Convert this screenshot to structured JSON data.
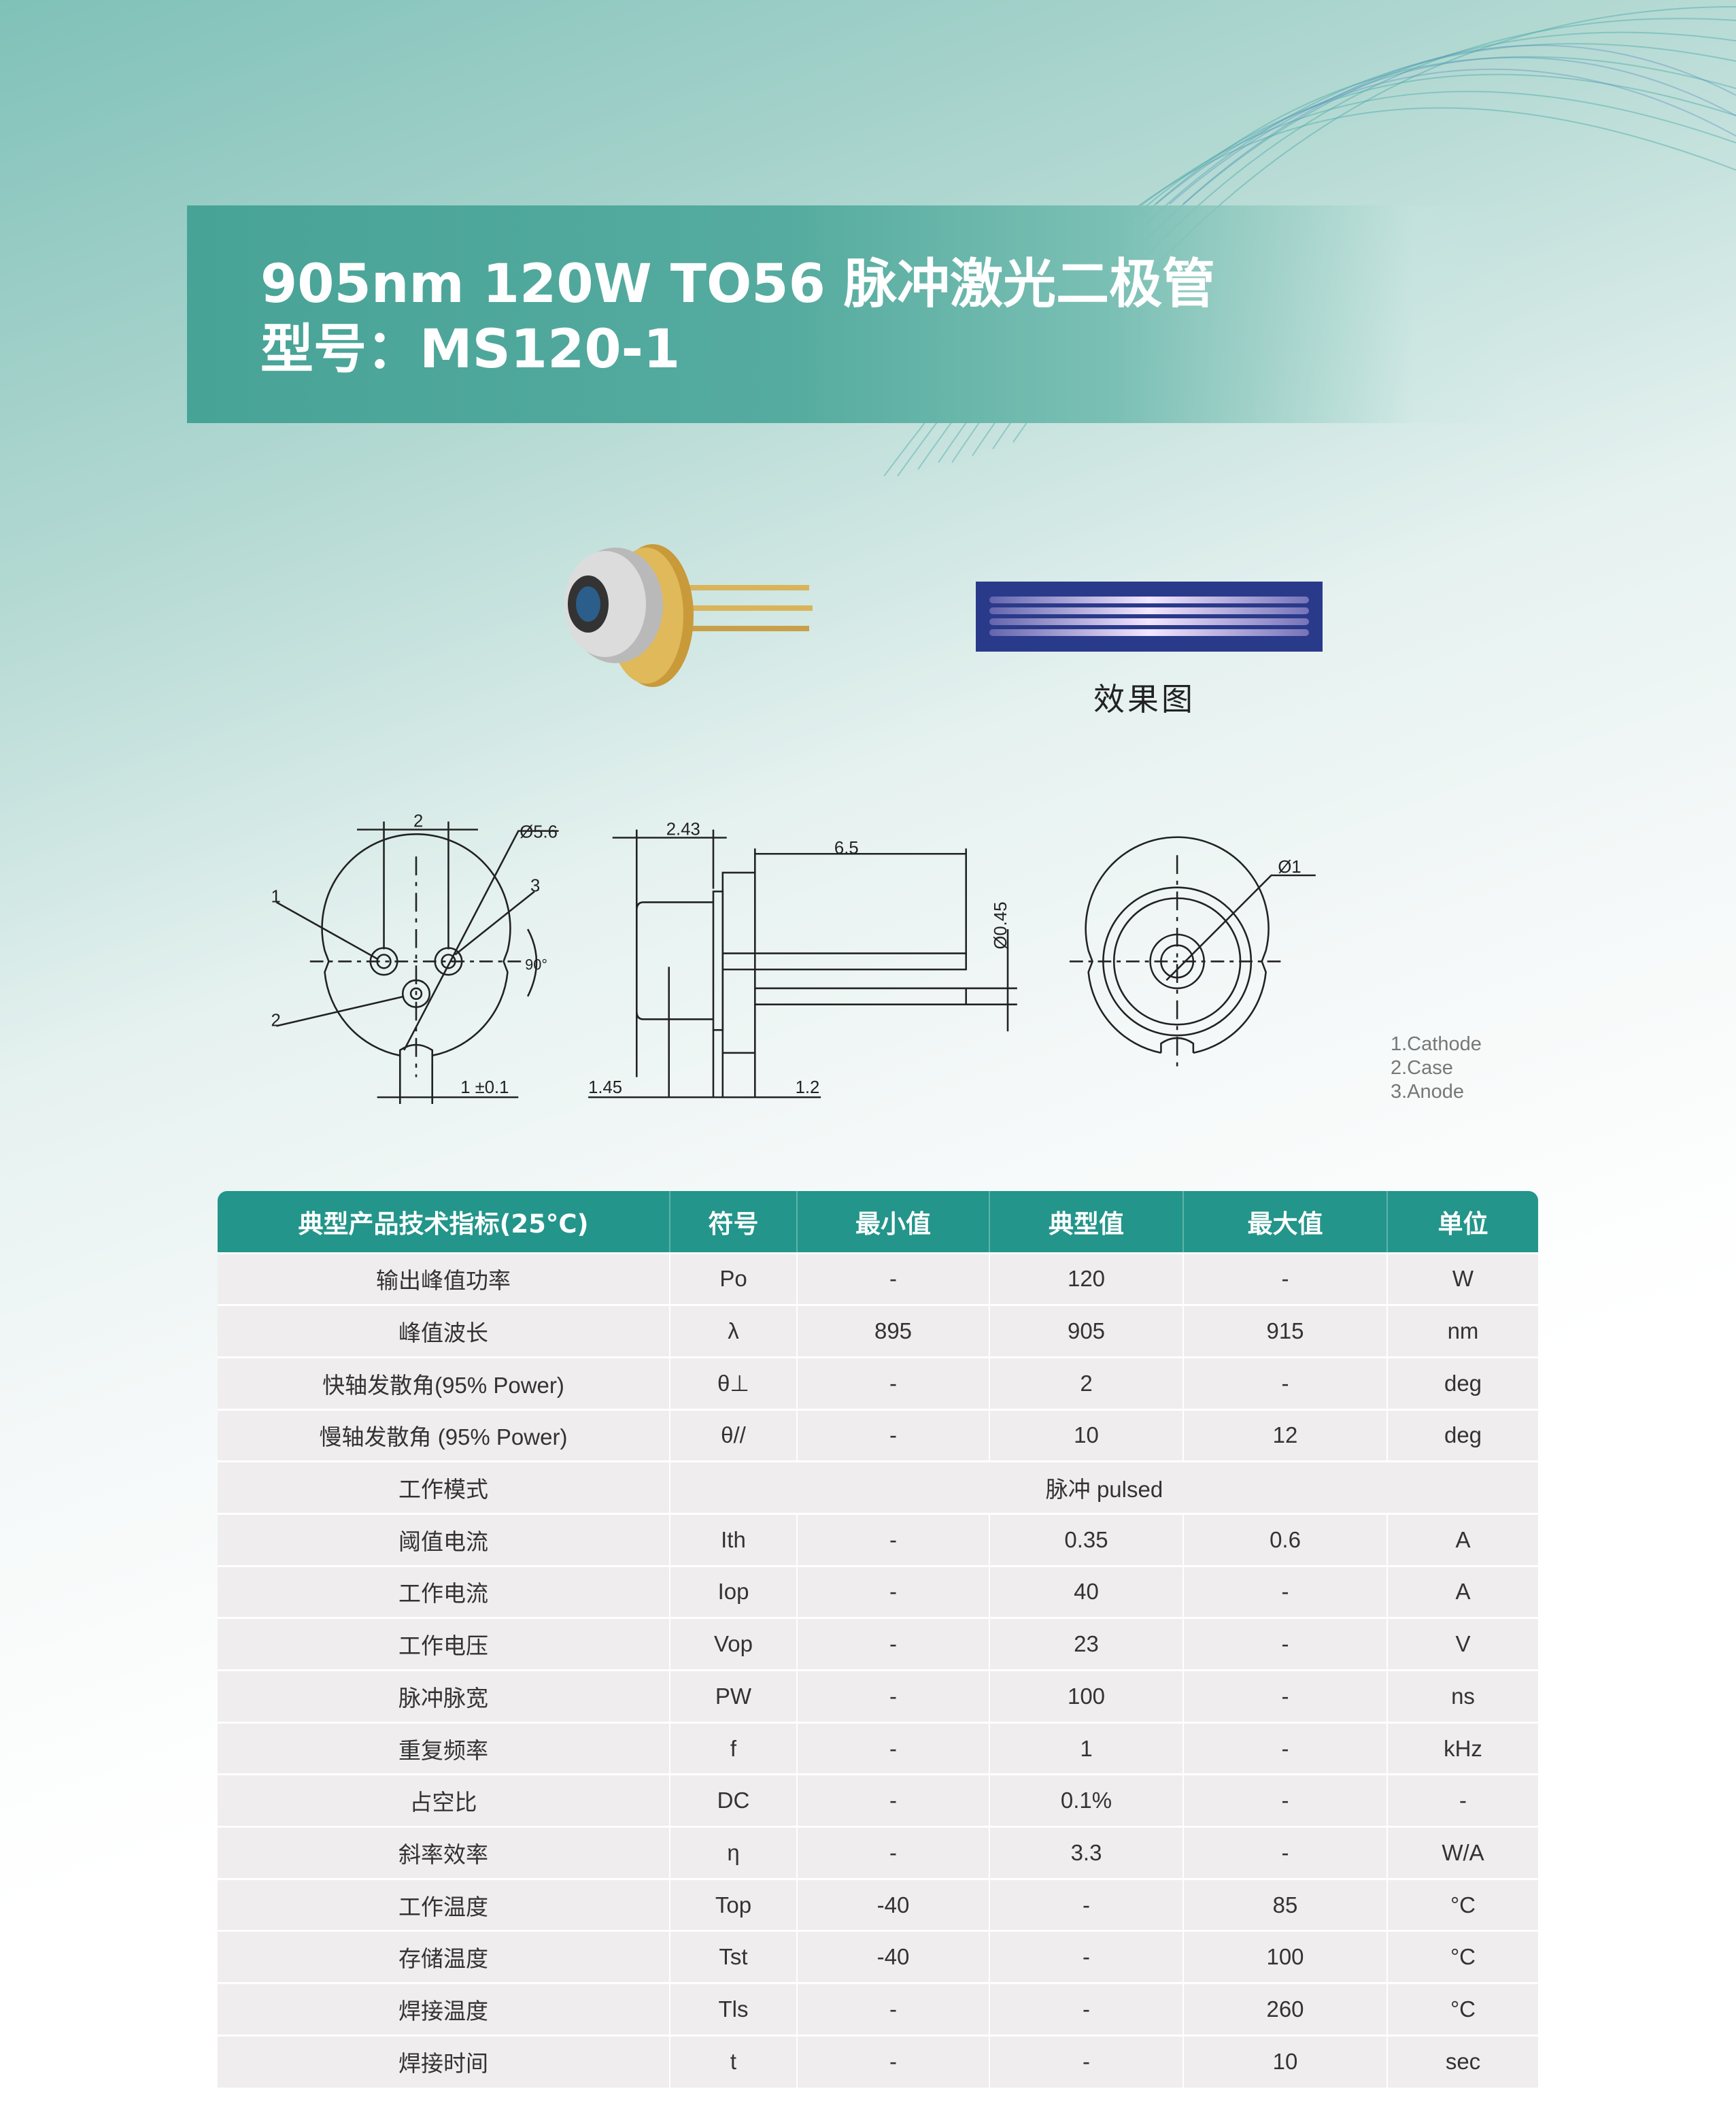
{
  "title": {
    "line1": "905nm 120W TO56 脉冲激光二极管",
    "line2": "型号：MS120-1"
  },
  "effect_label": "效果图",
  "drawing": {
    "dims": {
      "pitch": "2",
      "diameter": "Ø5.6",
      "pin1": "1",
      "pin2": "2",
      "pin3": "3",
      "angle": "90°",
      "slot": "1 ±0.1",
      "cap": "2.43",
      "lead": "6.5",
      "lead_dia": "Ø0.45",
      "d145": "1.45",
      "d12": "1.2",
      "window": "Ø1"
    }
  },
  "pins": [
    "1.Cathode",
    "2.Case",
    "3.Anode"
  ],
  "colors": {
    "header": "#23958a",
    "band": "#48a397",
    "row": "#efedee"
  },
  "table": {
    "headers": [
      "典型产品技术指标(25°C)",
      "符号",
      "最小值",
      "典型值",
      "最大值",
      "单位"
    ],
    "rows": [
      [
        "输出峰值功率",
        "Po",
        "-",
        "120",
        "-",
        "W"
      ],
      [
        "峰值波长",
        "λ",
        "895",
        "905",
        "915",
        "nm"
      ],
      [
        "快轴发散角(95% Power)",
        "θ⊥",
        "-",
        "2",
        "-",
        "deg"
      ],
      [
        "慢轴发散角 (95% Power)",
        "θ//",
        "-",
        "10",
        "12",
        "deg"
      ],
      [
        "工作模式",
        "脉冲 pulsed"
      ],
      [
        "阈值电流",
        "Ith",
        "-",
        "0.35",
        "0.6",
        "A"
      ],
      [
        "工作电流",
        "Iop",
        "-",
        "40",
        "-",
        "A"
      ],
      [
        "工作电压",
        "Vop",
        "-",
        "23",
        "-",
        "V"
      ],
      [
        "脉冲脉宽",
        "PW",
        "-",
        "100",
        "-",
        "ns"
      ],
      [
        "重复频率",
        "f",
        "-",
        "1",
        "-",
        "kHz"
      ],
      [
        "占空比",
        "DC",
        "-",
        "0.1%",
        "-",
        "-"
      ],
      [
        "斜率效率",
        "η",
        "-",
        "3.3",
        "-",
        "W/A"
      ],
      [
        "工作温度",
        "Top",
        "-40",
        "-",
        "85",
        "°C"
      ],
      [
        "存储温度",
        "Tst",
        "-40",
        "-",
        "100",
        "°C"
      ],
      [
        "焊接温度",
        "Tls",
        "-",
        "-",
        "260",
        "°C"
      ],
      [
        "焊接时间",
        "t",
        "-",
        "-",
        "10",
        "sec"
      ]
    ]
  }
}
